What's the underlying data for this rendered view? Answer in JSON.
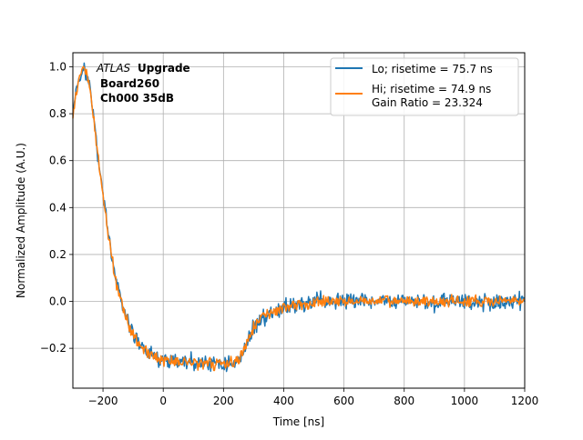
{
  "chart_data": {
    "type": "line",
    "xlabel": "Time [ns]",
    "ylabel": "Normalized Amplitude (A.U.)",
    "xlim": [
      -300,
      1200
    ],
    "ylim": [
      -0.37,
      1.06
    ],
    "xticks": [
      -200,
      0,
      200,
      400,
      600,
      800,
      1000,
      1200
    ],
    "xtick_labels": [
      "−200",
      "0",
      "200",
      "400",
      "600",
      "800",
      "1000",
      "1200"
    ],
    "yticks": [
      -0.2,
      0.0,
      0.2,
      0.4,
      0.6,
      0.8,
      1.0
    ],
    "ytick_labels": [
      "−0.2",
      "0.0",
      "0.2",
      "0.4",
      "0.6",
      "0.8",
      "1.0"
    ],
    "grid": true,
    "legend_position": "top-right",
    "annotation": {
      "experiment_italic": "ATLAS",
      "experiment_bold": "Upgrade",
      "board": "Board260",
      "channel": "Ch000 35dB"
    },
    "series": [
      {
        "name": "Lo; risetime = 75.7 ns",
        "color": "#1f77b4",
        "noise": 0.018,
        "x": [
          -300,
          -290,
          -280,
          -270,
          -260,
          -250,
          -240,
          -230,
          -220,
          -210,
          -200,
          -180,
          -160,
          -140,
          -120,
          -100,
          -80,
          -60,
          -40,
          -20,
          0,
          20,
          40,
          60,
          80,
          100,
          120,
          140,
          160,
          180,
          200,
          220,
          240,
          250,
          260,
          270,
          280,
          290,
          300,
          320,
          340,
          360,
          380,
          400,
          420,
          440,
          460,
          480,
          500,
          520,
          540,
          560,
          580,
          600,
          640,
          680,
          720,
          760,
          800,
          840,
          880,
          920,
          960,
          1000,
          1040,
          1080,
          1120,
          1160,
          1200
        ],
        "y": [
          0.8,
          0.88,
          0.94,
          0.98,
          0.99,
          0.95,
          0.87,
          0.77,
          0.66,
          0.55,
          0.45,
          0.27,
          0.11,
          0.0,
          -0.08,
          -0.14,
          -0.18,
          -0.21,
          -0.23,
          -0.24,
          -0.25,
          -0.25,
          -0.255,
          -0.26,
          -0.26,
          -0.26,
          -0.26,
          -0.26,
          -0.265,
          -0.265,
          -0.265,
          -0.265,
          -0.26,
          -0.25,
          -0.23,
          -0.2,
          -0.17,
          -0.14,
          -0.11,
          -0.08,
          -0.06,
          -0.045,
          -0.035,
          -0.025,
          -0.02,
          -0.015,
          -0.01,
          -0.008,
          -0.005,
          -0.003,
          0.0,
          0.0,
          0.0,
          0.0,
          0.0,
          0.0,
          0.0,
          0.0,
          0.0,
          0.0,
          0.0,
          0.0,
          0.0,
          0.0,
          0.0,
          0.0,
          0.0,
          0.0,
          0.0
        ]
      },
      {
        "name": "Hi; risetime = 74.9 ns\n Gain Ratio = 23.324",
        "color": "#ff7f0e",
        "noise": 0.012,
        "x": [
          -300,
          -290,
          -280,
          -270,
          -260,
          -250,
          -240,
          -230,
          -220,
          -210,
          -200,
          -180,
          -160,
          -140,
          -120,
          -100,
          -80,
          -60,
          -40,
          -20,
          0,
          20,
          40,
          60,
          80,
          100,
          120,
          140,
          160,
          180,
          200,
          220,
          240,
          250,
          260,
          270,
          280,
          290,
          300,
          320,
          340,
          360,
          380,
          400,
          420,
          440,
          460,
          480,
          500,
          520,
          540,
          560,
          580,
          600,
          640,
          680,
          720,
          760,
          800,
          840,
          880,
          920,
          960,
          1000,
          1040,
          1080,
          1120,
          1160,
          1200
        ],
        "y": [
          0.8,
          0.88,
          0.94,
          0.98,
          0.99,
          0.95,
          0.87,
          0.77,
          0.66,
          0.55,
          0.45,
          0.27,
          0.11,
          0.0,
          -0.08,
          -0.14,
          -0.18,
          -0.21,
          -0.23,
          -0.24,
          -0.25,
          -0.25,
          -0.255,
          -0.26,
          -0.26,
          -0.26,
          -0.26,
          -0.26,
          -0.265,
          -0.265,
          -0.265,
          -0.265,
          -0.26,
          -0.25,
          -0.23,
          -0.2,
          -0.17,
          -0.14,
          -0.11,
          -0.08,
          -0.06,
          -0.045,
          -0.035,
          -0.025,
          -0.02,
          -0.015,
          -0.01,
          -0.008,
          -0.005,
          -0.003,
          0.0,
          0.0,
          0.0,
          0.0,
          0.0,
          0.0,
          0.0,
          0.0,
          0.0,
          0.0,
          0.0,
          0.0,
          0.0,
          0.0,
          0.0,
          0.0,
          0.0,
          0.0,
          0.0
        ]
      }
    ]
  }
}
